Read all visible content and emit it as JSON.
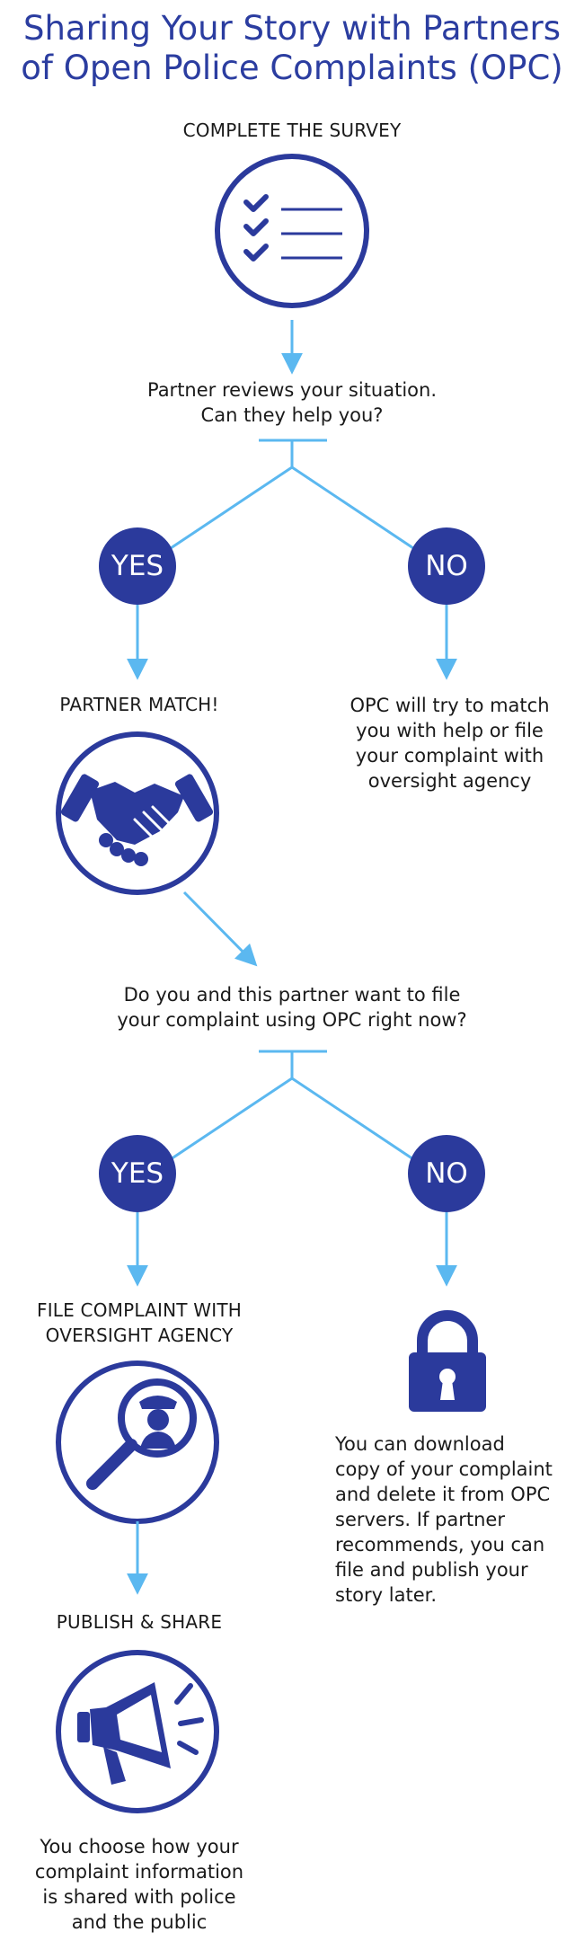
{
  "title": {
    "line1": "Sharing Your Story with Partners",
    "line2": "of Open Police Complaints (OPC)"
  },
  "steps": {
    "survey": "COMPLETE THE SURVEY",
    "review_line1": "Partner reviews your situation.",
    "review_line2": "Can they help you?",
    "yes1": "YES",
    "no1": "NO",
    "match": "PARTNER MATCH!",
    "no_match_line1": "OPC will try to match",
    "no_match_line2": "you with help or file",
    "no_match_line3": "your complaint with",
    "no_match_line4": "oversight agency",
    "file_q_line1": "Do you and this partner want to file",
    "file_q_line2": "your complaint using OPC right now?",
    "yes2": "YES",
    "no2": "NO",
    "file_line1": "FILE COMPLAINT WITH",
    "file_line2": "OVERSIGHT AGENCY",
    "download_line1": "You can download",
    "download_line2": "copy of your complaint",
    "download_line3": "and delete it from OPC",
    "download_line4": "servers. If partner",
    "download_line5": "recommends, you can",
    "download_line6": "file and publish your",
    "download_line7": "story later.",
    "publish": "PUBLISH & SHARE",
    "choose_line1": "You choose how your",
    "choose_line2": "complaint information",
    "choose_line3": "is shared with police",
    "choose_line4": "and the public"
  },
  "icons": {
    "checklist": "checklist-icon",
    "handshake": "handshake-icon",
    "investigate": "magnifier-officer-icon",
    "lock": "lock-icon",
    "megaphone": "megaphone-icon"
  },
  "colors": {
    "navy": "#2b3a9c",
    "title_blue": "#2b3da0",
    "arrow_blue": "#5bb8f0",
    "text": "#1a1a1a"
  }
}
